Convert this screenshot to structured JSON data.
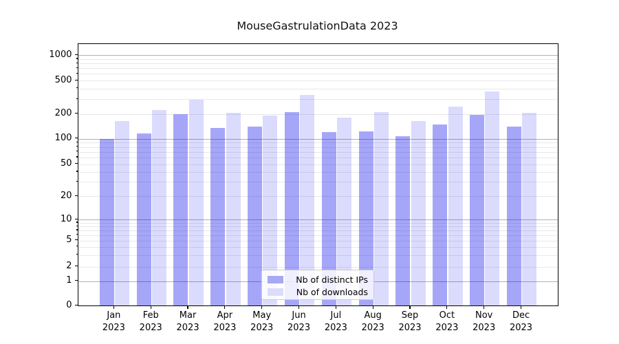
{
  "chart_data": {
    "type": "bar",
    "title": "MouseGastrulationData 2023",
    "categories": [
      "Jan",
      "Feb",
      "Mar",
      "Apr",
      "May",
      "Jun",
      "Jul",
      "Aug",
      "Sep",
      "Oct",
      "Nov",
      "Dec"
    ],
    "x_sublabel": "2023",
    "series": [
      {
        "name": "Nb of distinct IPs",
        "color": "rgba(0,0,238,0.35)",
        "legend_color": "#a8a8f3",
        "values": [
          100,
          115,
          200,
          135,
          140,
          210,
          120,
          122,
          108,
          150,
          195,
          140
        ]
      },
      {
        "name": "Nb of downloads",
        "color": "rgba(0,0,238,0.14)",
        "legend_color": "#dcdcfa",
        "values": [
          165,
          220,
          295,
          205,
          190,
          335,
          180,
          210,
          165,
          245,
          370,
          205
        ]
      }
    ],
    "yscale": "pseudo-log",
    "ylim": [
      0,
      1360
    ],
    "yticks": [
      1000,
      500,
      200,
      100,
      50,
      20,
      10,
      5,
      2,
      1,
      0
    ],
    "grid": "horizontal",
    "legend_position": "lower center",
    "colors": {
      "major_grid": "#b0b0b0",
      "minor_grid": "#e8e8e8",
      "axis": "#000000"
    }
  }
}
